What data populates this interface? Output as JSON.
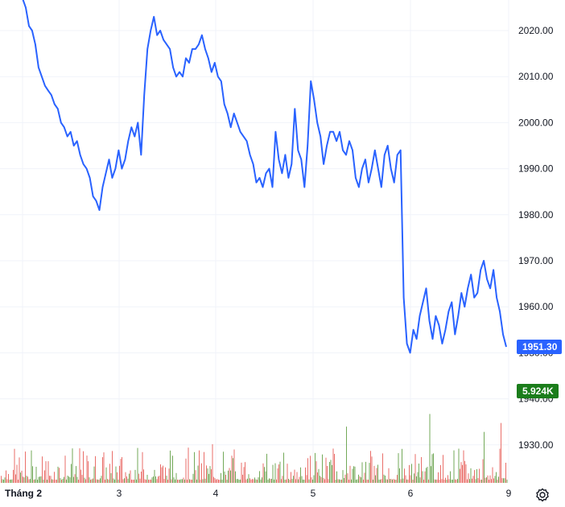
{
  "chart_data": {
    "type": "line",
    "x_labels": [
      "Tháng 2",
      "3",
      "4",
      "5",
      "6",
      "9"
    ],
    "y_ticks": [
      "2020.00",
      "2010.00",
      "2000.00",
      "1990.00",
      "1980.00",
      "1970.00",
      "1960.00",
      "1950.00",
      "1940.00",
      "1930.00"
    ],
    "ylim": [
      1920,
      2027
    ],
    "series": [
      {
        "type": "line",
        "color": "#2962ff",
        "values": [
          2027,
          2025,
          2021,
          2020,
          2017,
          2012,
          2010,
          2008,
          2007,
          2006,
          2004,
          2003,
          2000,
          1999,
          1997,
          1998,
          1995,
          1996,
          1993,
          1991,
          1990,
          1988,
          1984,
          1983,
          1981,
          1986,
          1989,
          1992,
          1988,
          1990,
          1994,
          1990,
          1992,
          1996,
          1999,
          1997,
          2000,
          1993,
          2006,
          2016,
          2020,
          2023,
          2019,
          2020,
          2018,
          2017,
          2016,
          2012,
          2010,
          2011,
          2010,
          2014,
          2013,
          2016,
          2016,
          2017,
          2019,
          2016,
          2014,
          2011,
          2013,
          2010,
          2009,
          2004,
          2002,
          1999,
          2002,
          2000,
          1998,
          1997,
          1996,
          1993,
          1991,
          1987,
          1988,
          1986,
          1989,
          1990,
          1986,
          1998,
          1992,
          1989,
          1993,
          1988,
          1991,
          2003,
          1994,
          1992,
          1986,
          1995,
          2009,
          2005,
          2000,
          1997,
          1991,
          1995,
          1998,
          1998,
          1996,
          1998,
          1994,
          1993,
          1996,
          1994,
          1988,
          1986,
          1990,
          1992,
          1987,
          1990,
          1994,
          1990,
          1986,
          1993,
          1995,
          1990,
          1987,
          1993,
          1994,
          1962,
          1952,
          1950,
          1955,
          1953,
          1958,
          1961,
          1964,
          1957,
          1953,
          1958,
          1956,
          1952,
          1955,
          1959,
          1961,
          1954,
          1958,
          1963,
          1960,
          1964,
          1967,
          1962,
          1963,
          1968,
          1970,
          1966,
          1964,
          1968,
          1962,
          1959,
          1954,
          1951.3
        ]
      },
      {
        "type": "bar",
        "name": "volume",
        "last_value_label": "5.924K"
      }
    ],
    "last_price_label": "1951.30",
    "price_badge_color": "#2962ff",
    "volume_badge_color": "#1b7d1b",
    "volume_up_color": "#5b9a3c",
    "volume_down_color": "#e5554f"
  },
  "settings_icon": "gear-icon"
}
